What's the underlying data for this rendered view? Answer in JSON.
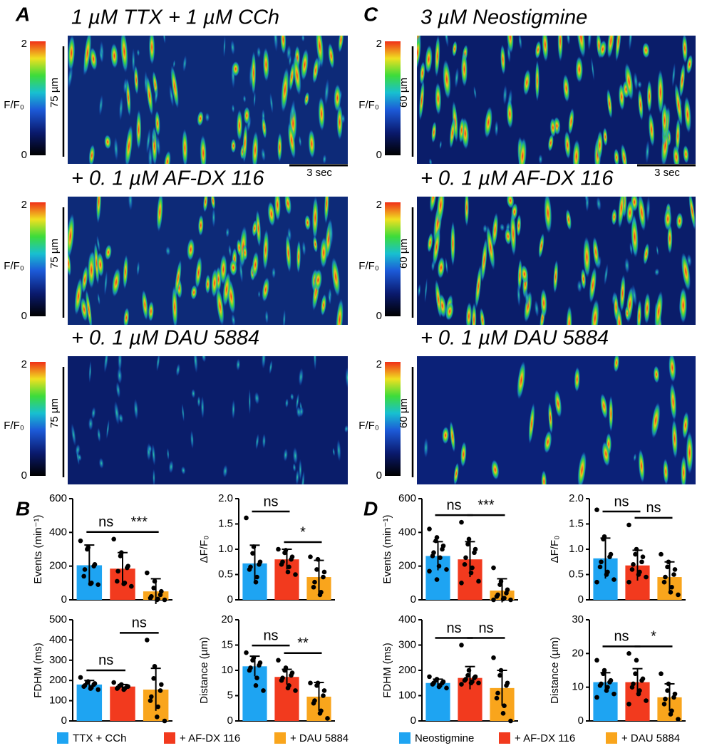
{
  "panels": [
    "A",
    "B",
    "C",
    "D"
  ],
  "kymographs": [
    {
      "title": "1 µM TTX + 1 µM CCh",
      "colorbar_max": "2",
      "colorbar_min": "0",
      "colorbar_label": "F/F₀",
      "scale_label": "75 µm",
      "time_label": "3 sec"
    },
    {
      "title": "+ 0. 1 µM AF-DX 116",
      "colorbar_max": "2",
      "colorbar_min": "0",
      "colorbar_label": "F/F₀",
      "scale_label": "75 µm"
    },
    {
      "title": "+ 0. 1 µM DAU 5884",
      "colorbar_max": "2",
      "colorbar_min": "0",
      "colorbar_label": "F/F₀",
      "scale_label": "75 µm"
    },
    {
      "title": "3 µM Neostigmine",
      "colorbar_max": "2",
      "colorbar_min": "0",
      "colorbar_label": "F/F₀",
      "scale_label": "60 µm",
      "time_label": "3 sec"
    },
    {
      "title": "+ 0. 1 µM AF-DX 116",
      "colorbar_max": "2",
      "colorbar_min": "0",
      "colorbar_label": "F/F₀",
      "scale_label": "60 µm"
    },
    {
      "title": "+ 0. 1 µM DAU 5884",
      "colorbar_max": "2",
      "colorbar_min": "0",
      "colorbar_label": "F/F₀",
      "scale_label": "60 µm"
    }
  ],
  "legends": [
    {
      "entries": [
        {
          "name": "TTX + CCh",
          "color": "#1ea4f2"
        },
        {
          "name": "+ AF-DX 116",
          "color": "#f23a1e"
        },
        {
          "name": "+ DAU 5884",
          "color": "#f9a51c"
        }
      ]
    },
    {
      "entries": [
        {
          "name": "Neostigmine",
          "color": "#1ea4f2"
        },
        {
          "name": "+ AF-DX 116",
          "color": "#f23a1e"
        },
        {
          "name": "+ DAU 5884",
          "color": "#f9a51c"
        }
      ]
    }
  ],
  "chart_data": [
    {
      "type": "bar",
      "ylabel": "Events (min⁻¹)",
      "ylim": [
        0,
        600
      ],
      "yticks": [
        0,
        200,
        400,
        600
      ],
      "values": [
        205,
        185,
        50
      ],
      "errors": [
        120,
        95,
        75
      ],
      "points": [
        [
          350,
          310,
          300,
          210,
          200,
          180,
          140,
          100,
          95,
          90
        ],
        [
          360,
          280,
          260,
          200,
          190,
          170,
          110,
          100,
          95,
          80
        ],
        [
          160,
          110,
          70,
          50,
          30,
          20,
          10,
          5,
          0,
          0
        ]
      ],
      "significance": [
        {
          "label": "ns",
          "between": [
            0,
            1
          ]
        },
        {
          "label": "***",
          "between": [
            1,
            2
          ]
        }
      ]
    },
    {
      "type": "bar",
      "ylabel": "ΔF/F₀",
      "ylim": [
        0,
        2
      ],
      "yticks": [
        0,
        0.5,
        {
          "value": 1,
          "label": "1.0"
        },
        1.5,
        {
          "value": 2,
          "label": "2.0"
        }
      ],
      "values": [
        0.72,
        0.8,
        0.45
      ],
      "errors": [
        0.36,
        0.2,
        0.33
      ],
      "points": [
        [
          1.62,
          1.05,
          0.92,
          0.75,
          0.7,
          0.65,
          0.6,
          0.45,
          0.35
        ],
        [
          1.0,
          0.98,
          0.93,
          0.85,
          0.8,
          0.75,
          0.7,
          0.65,
          0.55,
          0.5
        ],
        [
          0.85,
          0.8,
          0.6,
          0.55,
          0.45,
          0.35,
          0.25,
          0.15,
          0.1
        ]
      ],
      "significance": [
        {
          "label": "ns",
          "between": [
            0,
            1
          ]
        },
        {
          "label": "*",
          "between": [
            1,
            2
          ]
        }
      ]
    },
    {
      "type": "bar",
      "ylabel": "FDHM (ms)",
      "ylim": [
        0,
        500
      ],
      "yticks": [
        0,
        100,
        200,
        300,
        400,
        500
      ],
      "values": [
        180,
        170,
        155
      ],
      "errors": [
        20,
        10,
        105
      ],
      "points": [
        [
          215,
          195,
          190,
          185,
          180,
          175,
          170,
          165,
          160,
          155
        ],
        [
          190,
          180,
          175,
          170,
          170,
          165,
          160,
          160,
          155
        ],
        [
          400,
          270,
          210,
          180,
          150,
          120,
          100,
          70,
          20,
          0
        ]
      ],
      "significance": [
        {
          "label": "ns",
          "between": [
            0,
            1
          ]
        },
        {
          "label": "ns",
          "between": [
            1,
            2
          ]
        }
      ]
    },
    {
      "type": "bar",
      "ylabel": "Distance (µm)",
      "ylim": [
        0,
        20
      ],
      "yticks": [
        0,
        5,
        10,
        15,
        20
      ],
      "values": [
        10.8,
        8.7,
        4.8
      ],
      "errors": [
        2,
        1.5,
        2.8
      ],
      "points": [
        [
          13.5,
          12.5,
          12,
          11.5,
          11,
          10.5,
          10,
          8.5,
          7,
          6
        ],
        [
          12,
          10.5,
          10,
          9.5,
          9,
          8.5,
          8,
          7,
          6.5,
          6
        ],
        [
          7.5,
          7.5,
          7,
          6,
          5,
          4,
          3.5,
          2,
          1.5,
          0.5
        ]
      ],
      "significance": [
        {
          "label": "ns",
          "between": [
            0,
            1
          ]
        },
        {
          "label": "**",
          "between": [
            1,
            2
          ]
        }
      ]
    },
    {
      "type": "bar",
      "ylabel": "Events (min⁻¹)",
      "ylim": [
        0,
        600
      ],
      "yticks": [
        0,
        200,
        400,
        600
      ],
      "values": [
        260,
        240,
        55
      ],
      "errors": [
        85,
        105,
        70
      ],
      "points": [
        [
          420,
          370,
          350,
          320,
          300,
          280,
          260,
          250,
          200,
          180,
          170,
          120
        ],
        [
          460,
          360,
          330,
          300,
          280,
          250,
          210,
          190,
          160,
          110,
          100
        ],
        [
          190,
          110,
          90,
          60,
          40,
          30,
          20,
          10,
          5,
          0,
          0
        ]
      ],
      "significance": [
        {
          "label": "ns",
          "between": [
            0,
            1
          ]
        },
        {
          "label": "***",
          "between": [
            1,
            2
          ]
        }
      ]
    },
    {
      "type": "bar",
      "ylabel": "ΔF/F₀",
      "ylim": [
        0,
        2
      ],
      "yticks": [
        0,
        0.5,
        {
          "value": 1,
          "label": "1.0"
        },
        1.5,
        {
          "value": 2,
          "label": "2.0"
        }
      ],
      "values": [
        0.82,
        0.68,
        0.45
      ],
      "errors": [
        0.4,
        0.3,
        0.3
      ],
      "points": [
        [
          1.78,
          1.25,
          1.2,
          0.9,
          0.85,
          0.75,
          0.65,
          0.55,
          0.5,
          0.4,
          0.35
        ],
        [
          1.48,
          1.0,
          0.9,
          0.85,
          0.75,
          0.7,
          0.6,
          0.55,
          0.5,
          0.45,
          0.35
        ],
        [
          0.9,
          0.75,
          0.65,
          0.6,
          0.5,
          0.45,
          0.35,
          0.25,
          0.15,
          0.1
        ]
      ],
      "significance": [
        {
          "label": "ns",
          "between": [
            0,
            1
          ]
        },
        {
          "label": "ns",
          "between": [
            1,
            2
          ]
        }
      ]
    },
    {
      "type": "bar",
      "ylabel": "FDHM (ms)",
      "ylim": [
        0,
        400
      ],
      "yticks": [
        0,
        100,
        200,
        300,
        400
      ],
      "values": [
        150,
        170,
        130
      ],
      "errors": [
        15,
        45,
        70
      ],
      "points": [
        [
          175,
          165,
          160,
          155,
          150,
          150,
          145,
          140,
          135,
          130
        ],
        [
          300,
          200,
          180,
          175,
          170,
          165,
          160,
          155,
          150,
          150,
          145
        ],
        [
          250,
          200,
          180,
          150,
          140,
          110,
          90,
          60,
          30,
          0
        ]
      ],
      "significance": [
        {
          "label": "ns",
          "between": [
            0,
            1
          ]
        },
        {
          "label": "ns",
          "between": [
            1,
            2
          ]
        }
      ]
    },
    {
      "type": "bar",
      "ylabel": "Distance (µm)",
      "ylim": [
        0,
        30
      ],
      "yticks": [
        0,
        10,
        20,
        30
      ],
      "values": [
        11.5,
        11.5,
        7
      ],
      "errors": [
        2.8,
        4,
        4
      ],
      "points": [
        [
          18,
          15,
          14,
          12,
          11.5,
          11,
          10.5,
          10,
          9,
          8,
          7
        ],
        [
          20,
          18,
          14,
          12.5,
          12,
          11,
          10,
          9,
          8,
          6,
          5
        ],
        [
          14,
          11,
          9,
          8,
          7,
          6.5,
          5,
          3,
          2,
          0.5
        ]
      ],
      "significance": [
        {
          "label": "ns",
          "between": [
            0,
            1
          ]
        },
        {
          "label": "*",
          "between": [
            1,
            2
          ]
        }
      ]
    }
  ]
}
